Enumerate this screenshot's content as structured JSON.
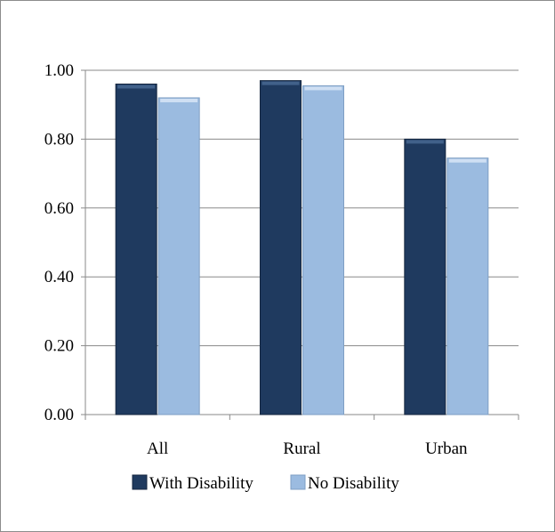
{
  "chart_data": {
    "type": "bar",
    "categories": [
      "All",
      "Rural",
      "Urban"
    ],
    "series": [
      {
        "name": "With Disability",
        "values": [
          0.96,
          0.97,
          0.8
        ],
        "color": "#1f3a5f"
      },
      {
        "name": "No Disability",
        "values": [
          0.92,
          0.955,
          0.745
        ],
        "color": "#9bbbe0"
      }
    ],
    "ylim": [
      0,
      1.0
    ],
    "yticks": [
      "0.00",
      "0.20",
      "0.40",
      "0.60",
      "0.80",
      "1.00"
    ],
    "ytick_values": [
      0,
      0.2,
      0.4,
      0.6,
      0.8,
      1.0
    ],
    "grid": true,
    "legend_position": "bottom",
    "title": "",
    "xlabel": "",
    "ylabel": ""
  }
}
